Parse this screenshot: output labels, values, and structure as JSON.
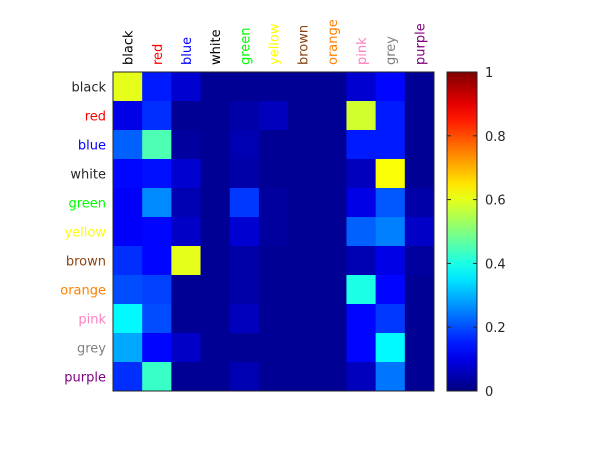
{
  "chart_data": {
    "type": "heatmap",
    "title": "",
    "xlabel": "",
    "ylabel": "",
    "x_categories": [
      "black",
      "red",
      "blue",
      "white",
      "green",
      "yellow",
      "brown",
      "orange",
      "pink",
      "grey",
      "purple"
    ],
    "y_categories": [
      "black",
      "red",
      "blue",
      "white",
      "green",
      "yellow",
      "brown",
      "orange",
      "pink",
      "grey",
      "purple"
    ],
    "x_label_colors": [
      "#000000",
      "#ff0000",
      "#0000ff",
      "#000000",
      "#00ff00",
      "#ffff00",
      "#8b4513",
      "#ff8000",
      "#ff80c0",
      "#808080",
      "#800080"
    ],
    "y_label_colors": [
      "#262626",
      "#ff0000",
      "#0000ff",
      "#262626",
      "#00ff00",
      "#ffff00",
      "#8b4513",
      "#ff8000",
      "#ff80c0",
      "#808080",
      "#800080"
    ],
    "colormap": "jet",
    "clim": [
      0,
      1
    ],
    "colorbar_ticks": [
      "0",
      "0.2",
      "0.4",
      "0.6",
      "0.8",
      "1"
    ],
    "colorbar_tick_values": [
      0,
      0.2,
      0.4,
      0.6,
      0.8,
      1
    ],
    "values": [
      [
        0.6,
        0.15,
        0.08,
        0.02,
        0.02,
        0.02,
        0.02,
        0.02,
        0.08,
        0.13,
        0.02
      ],
      [
        0.1,
        0.17,
        0.02,
        0.02,
        0.04,
        0.06,
        0.02,
        0.02,
        0.58,
        0.15,
        0.02
      ],
      [
        0.22,
        0.45,
        0.03,
        0.02,
        0.05,
        0.02,
        0.02,
        0.02,
        0.15,
        0.15,
        0.02
      ],
      [
        0.13,
        0.14,
        0.08,
        0.02,
        0.04,
        0.02,
        0.02,
        0.02,
        0.06,
        0.62,
        0.02
      ],
      [
        0.12,
        0.26,
        0.05,
        0.02,
        0.18,
        0.03,
        0.02,
        0.02,
        0.1,
        0.21,
        0.04
      ],
      [
        0.12,
        0.13,
        0.07,
        0.02,
        0.08,
        0.03,
        0.02,
        0.02,
        0.22,
        0.25,
        0.07
      ],
      [
        0.17,
        0.13,
        0.6,
        0.02,
        0.04,
        0.02,
        0.02,
        0.02,
        0.05,
        0.1,
        0.03
      ],
      [
        0.2,
        0.19,
        0.02,
        0.02,
        0.04,
        0.02,
        0.02,
        0.02,
        0.4,
        0.13,
        0.02
      ],
      [
        0.37,
        0.2,
        0.02,
        0.02,
        0.06,
        0.02,
        0.02,
        0.02,
        0.13,
        0.18,
        0.02
      ],
      [
        0.29,
        0.13,
        0.07,
        0.02,
        0.02,
        0.02,
        0.02,
        0.02,
        0.13,
        0.37,
        0.02
      ],
      [
        0.17,
        0.43,
        0.02,
        0.02,
        0.05,
        0.02,
        0.02,
        0.02,
        0.06,
        0.24,
        0.02
      ]
    ]
  }
}
